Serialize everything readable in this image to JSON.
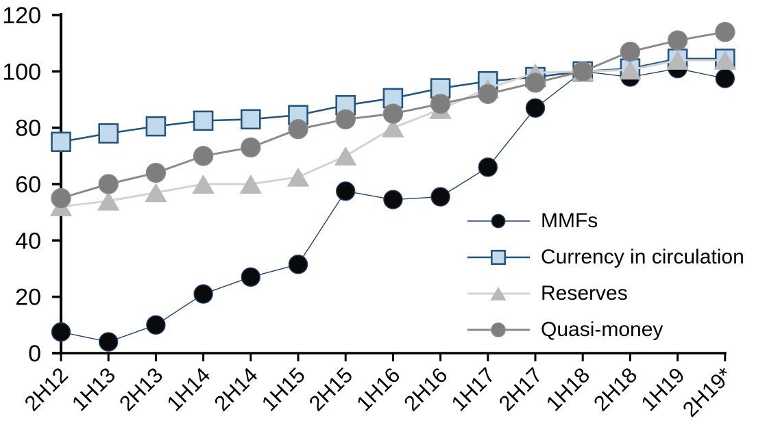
{
  "chart_data": {
    "type": "line",
    "title": "",
    "categories": [
      "2H12",
      "1H13",
      "2H13",
      "1H14",
      "2H14",
      "1H15",
      "2H15",
      "1H16",
      "2H16",
      "1H17",
      "2H17",
      "1H18",
      "2H18",
      "1H19",
      "2H19*"
    ],
    "series": [
      {
        "name": "MMFs",
        "marker": "circle",
        "marker_color": "#0a0a0a",
        "marker_border": "#24416b",
        "line_color": "#24416b",
        "line_width": 1.4,
        "marker_size": 27,
        "values": [
          7.5,
          4,
          10,
          21,
          27,
          31.5,
          57.5,
          54.5,
          55.5,
          66,
          87,
          100,
          98,
          101,
          97.5
        ]
      },
      {
        "name": "Currency in circulation",
        "marker": "square",
        "marker_color": "#c3d9ec",
        "marker_border": "#23567f",
        "line_color": "#23567f",
        "line_width": 2.6,
        "marker_size": 27,
        "values": [
          75,
          78,
          80.5,
          82.5,
          83,
          84.5,
          88,
          90.5,
          94,
          96.5,
          98,
          100,
          101,
          104.5,
          104.5
        ]
      },
      {
        "name": "Reserves",
        "marker": "triangle",
        "marker_color": "#b9b9b9",
        "marker_border": "#b9b9b9",
        "line_color": "#d3d3d3",
        "line_width": 3,
        "marker_size": 30,
        "values": [
          52,
          54,
          57,
          60,
          60,
          62.5,
          70,
          80,
          86.5,
          94,
          99.5,
          100,
          100.5,
          104,
          104
        ]
      },
      {
        "name": "Quasi-money",
        "marker": "circle",
        "marker_color": "#7e7e7e",
        "marker_border": "#8b8b8b",
        "line_color": "#8b8b8b",
        "line_width": 3,
        "marker_size": 28,
        "values": [
          55,
          60,
          64,
          70,
          73,
          79.5,
          83,
          85,
          88.5,
          92,
          96,
          100,
          107,
          111,
          114
        ]
      }
    ],
    "ylim": [
      0,
      120
    ],
    "yticks": [
      0,
      20,
      40,
      60,
      80,
      100,
      120
    ],
    "xlabel": "",
    "ylabel": "",
    "grid": false,
    "axis_color": "#000000",
    "legend_position": "inside-right"
  }
}
